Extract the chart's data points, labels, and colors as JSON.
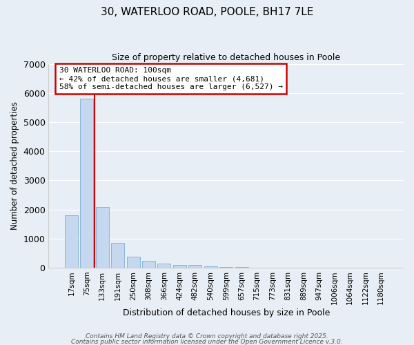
{
  "title1": "30, WATERLOO ROAD, POOLE, BH17 7LE",
  "title2": "Size of property relative to detached houses in Poole",
  "xlabel": "Distribution of detached houses by size in Poole",
  "ylabel": "Number of detached properties",
  "bar_labels": [
    "17sqm",
    "75sqm",
    "133sqm",
    "191sqm",
    "250sqm",
    "308sqm",
    "366sqm",
    "424sqm",
    "482sqm",
    "540sqm",
    "599sqm",
    "657sqm",
    "715sqm",
    "773sqm",
    "831sqm",
    "889sqm",
    "947sqm",
    "1006sqm",
    "1064sqm",
    "1122sqm",
    "1180sqm"
  ],
  "bar_values": [
    1800,
    5820,
    2080,
    840,
    370,
    235,
    130,
    90,
    85,
    40,
    30,
    10,
    5,
    3,
    2,
    1,
    1,
    0,
    0,
    0,
    0
  ],
  "bar_color": "#c5d8f0",
  "bar_edge_color": "#7aafd4",
  "highlight_bar_index": 11,
  "highlight_bar_color": "#b0c8e8",
  "highlight_bar_edge": "#5588bb",
  "vline_color": "#cc0000",
  "vline_x": 1.5,
  "annotation_title": "30 WATERLOO ROAD: 100sqm",
  "annotation_line2": "← 42% of detached houses are smaller (4,681)",
  "annotation_line3": "58% of semi-detached houses are larger (6,527) →",
  "annotation_box_color": "#cc0000",
  "background_color": "#e8eef5",
  "grid_color": "#ffffff",
  "ylim": [
    0,
    7000
  ],
  "yticks": [
    0,
    1000,
    2000,
    3000,
    4000,
    5000,
    6000,
    7000
  ],
  "footer1": "Contains HM Land Registry data © Crown copyright and database right 2025.",
  "footer2": "Contains public sector information licensed under the Open Government Licence v.3.0."
}
